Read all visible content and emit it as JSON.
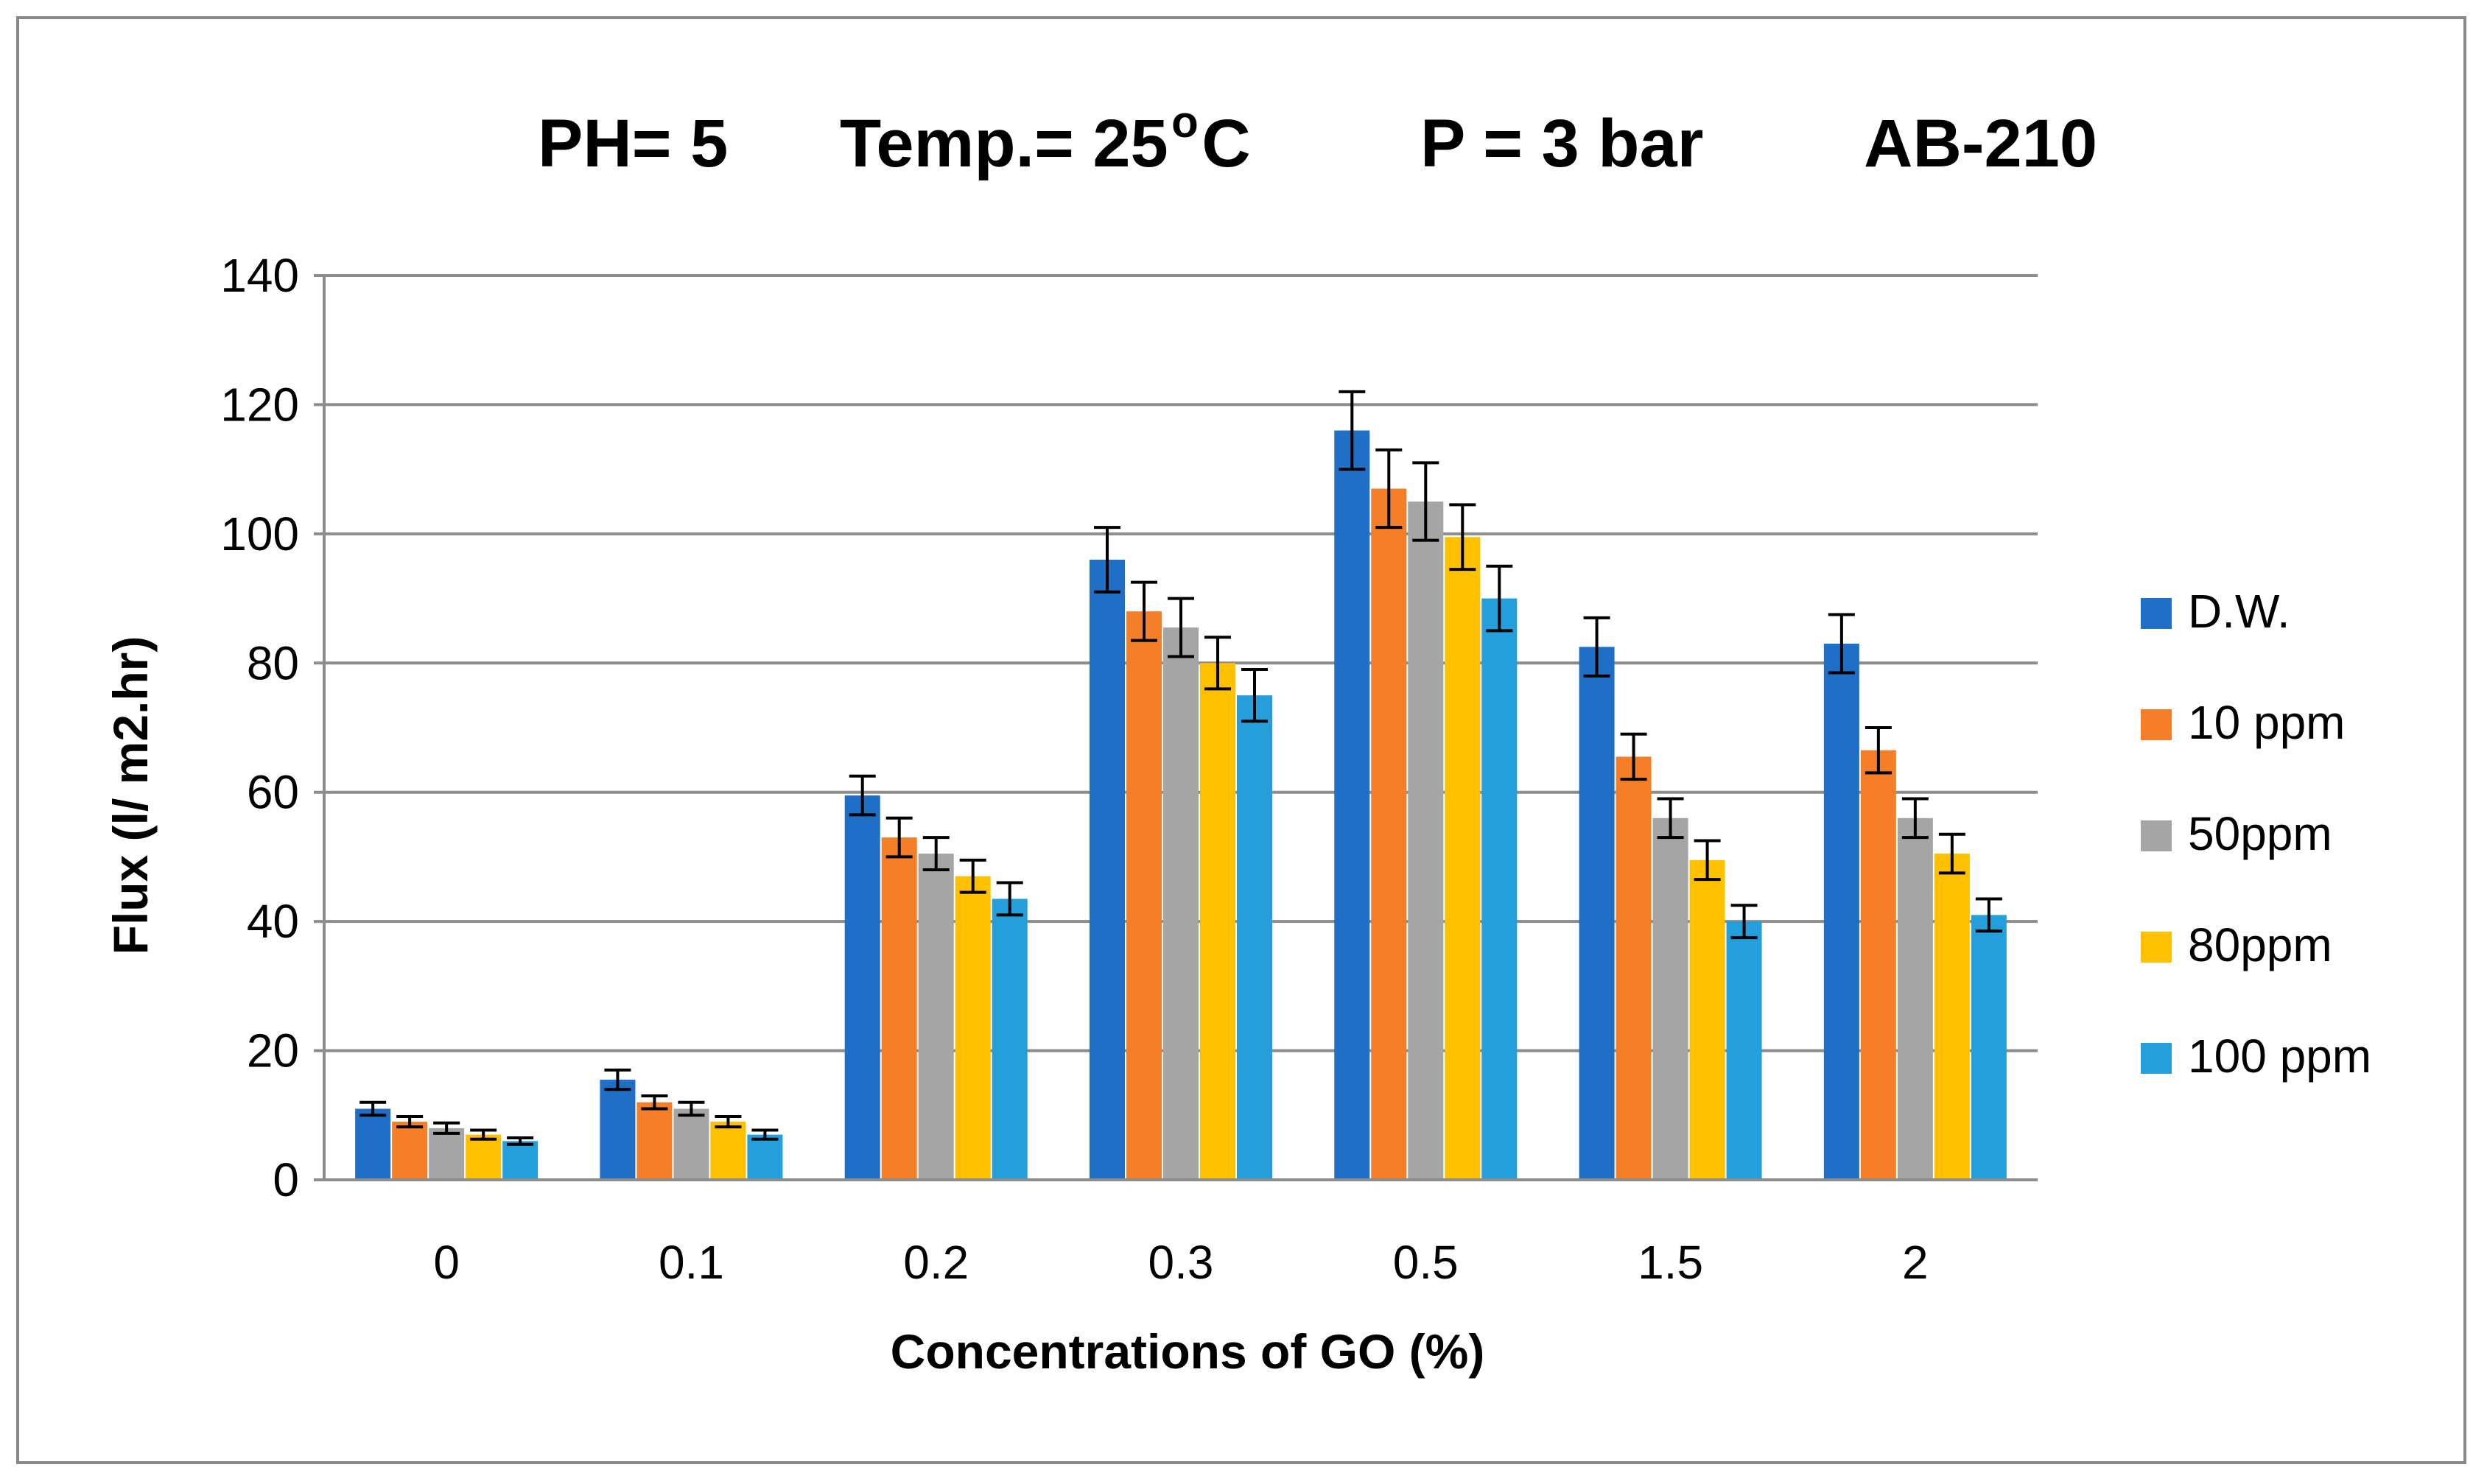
{
  "chart_data": {
    "type": "bar",
    "title_parts": [
      "PH= 5",
      "Temp.= 25",
      "o",
      "C",
      "P = 3 bar",
      "AB-210"
    ],
    "xlabel": "Concentrations of GO (%)",
    "ylabel": "Flux (l/ m2.hr)",
    "categories": [
      "0",
      "0.1",
      "0.2",
      "0.3",
      "0.5",
      "1.5",
      "2"
    ],
    "ylim": [
      0,
      140
    ],
    "yticks": [
      0,
      20,
      40,
      60,
      80,
      100,
      120,
      140
    ],
    "grid": true,
    "legend_position": "right",
    "series": [
      {
        "name": "D.W.",
        "color": "#1F6FC6",
        "values": [
          11,
          15.5,
          59.5,
          96,
          116,
          82.5,
          83
        ],
        "errors": [
          1,
          1.5,
          3,
          5,
          6,
          4.5,
          4.5
        ]
      },
      {
        "name": "10 ppm",
        "color": "#F57F29",
        "values": [
          9,
          12,
          53,
          88,
          107,
          65.5,
          66.5
        ],
        "errors": [
          0.8,
          1,
          3,
          4.5,
          6,
          3.5,
          3.5
        ]
      },
      {
        "name": "50ppm",
        "color": "#A5A5A5",
        "values": [
          8,
          11,
          50.5,
          85.5,
          105,
          56,
          56
        ],
        "errors": [
          0.8,
          1,
          2.5,
          4.5,
          6,
          3,
          3
        ]
      },
      {
        "name": "80ppm",
        "color": "#FFC000",
        "values": [
          7,
          9,
          47,
          80,
          99.5,
          49.5,
          50.5
        ],
        "errors": [
          0.7,
          0.8,
          2.5,
          4,
          5,
          3,
          3
        ]
      },
      {
        "name": "100 ppm",
        "color": "#259FDB",
        "values": [
          6,
          7,
          43.5,
          75,
          90,
          40,
          41
        ],
        "errors": [
          0.5,
          0.7,
          2.5,
          4,
          5,
          2.5,
          2.5
        ]
      }
    ]
  }
}
